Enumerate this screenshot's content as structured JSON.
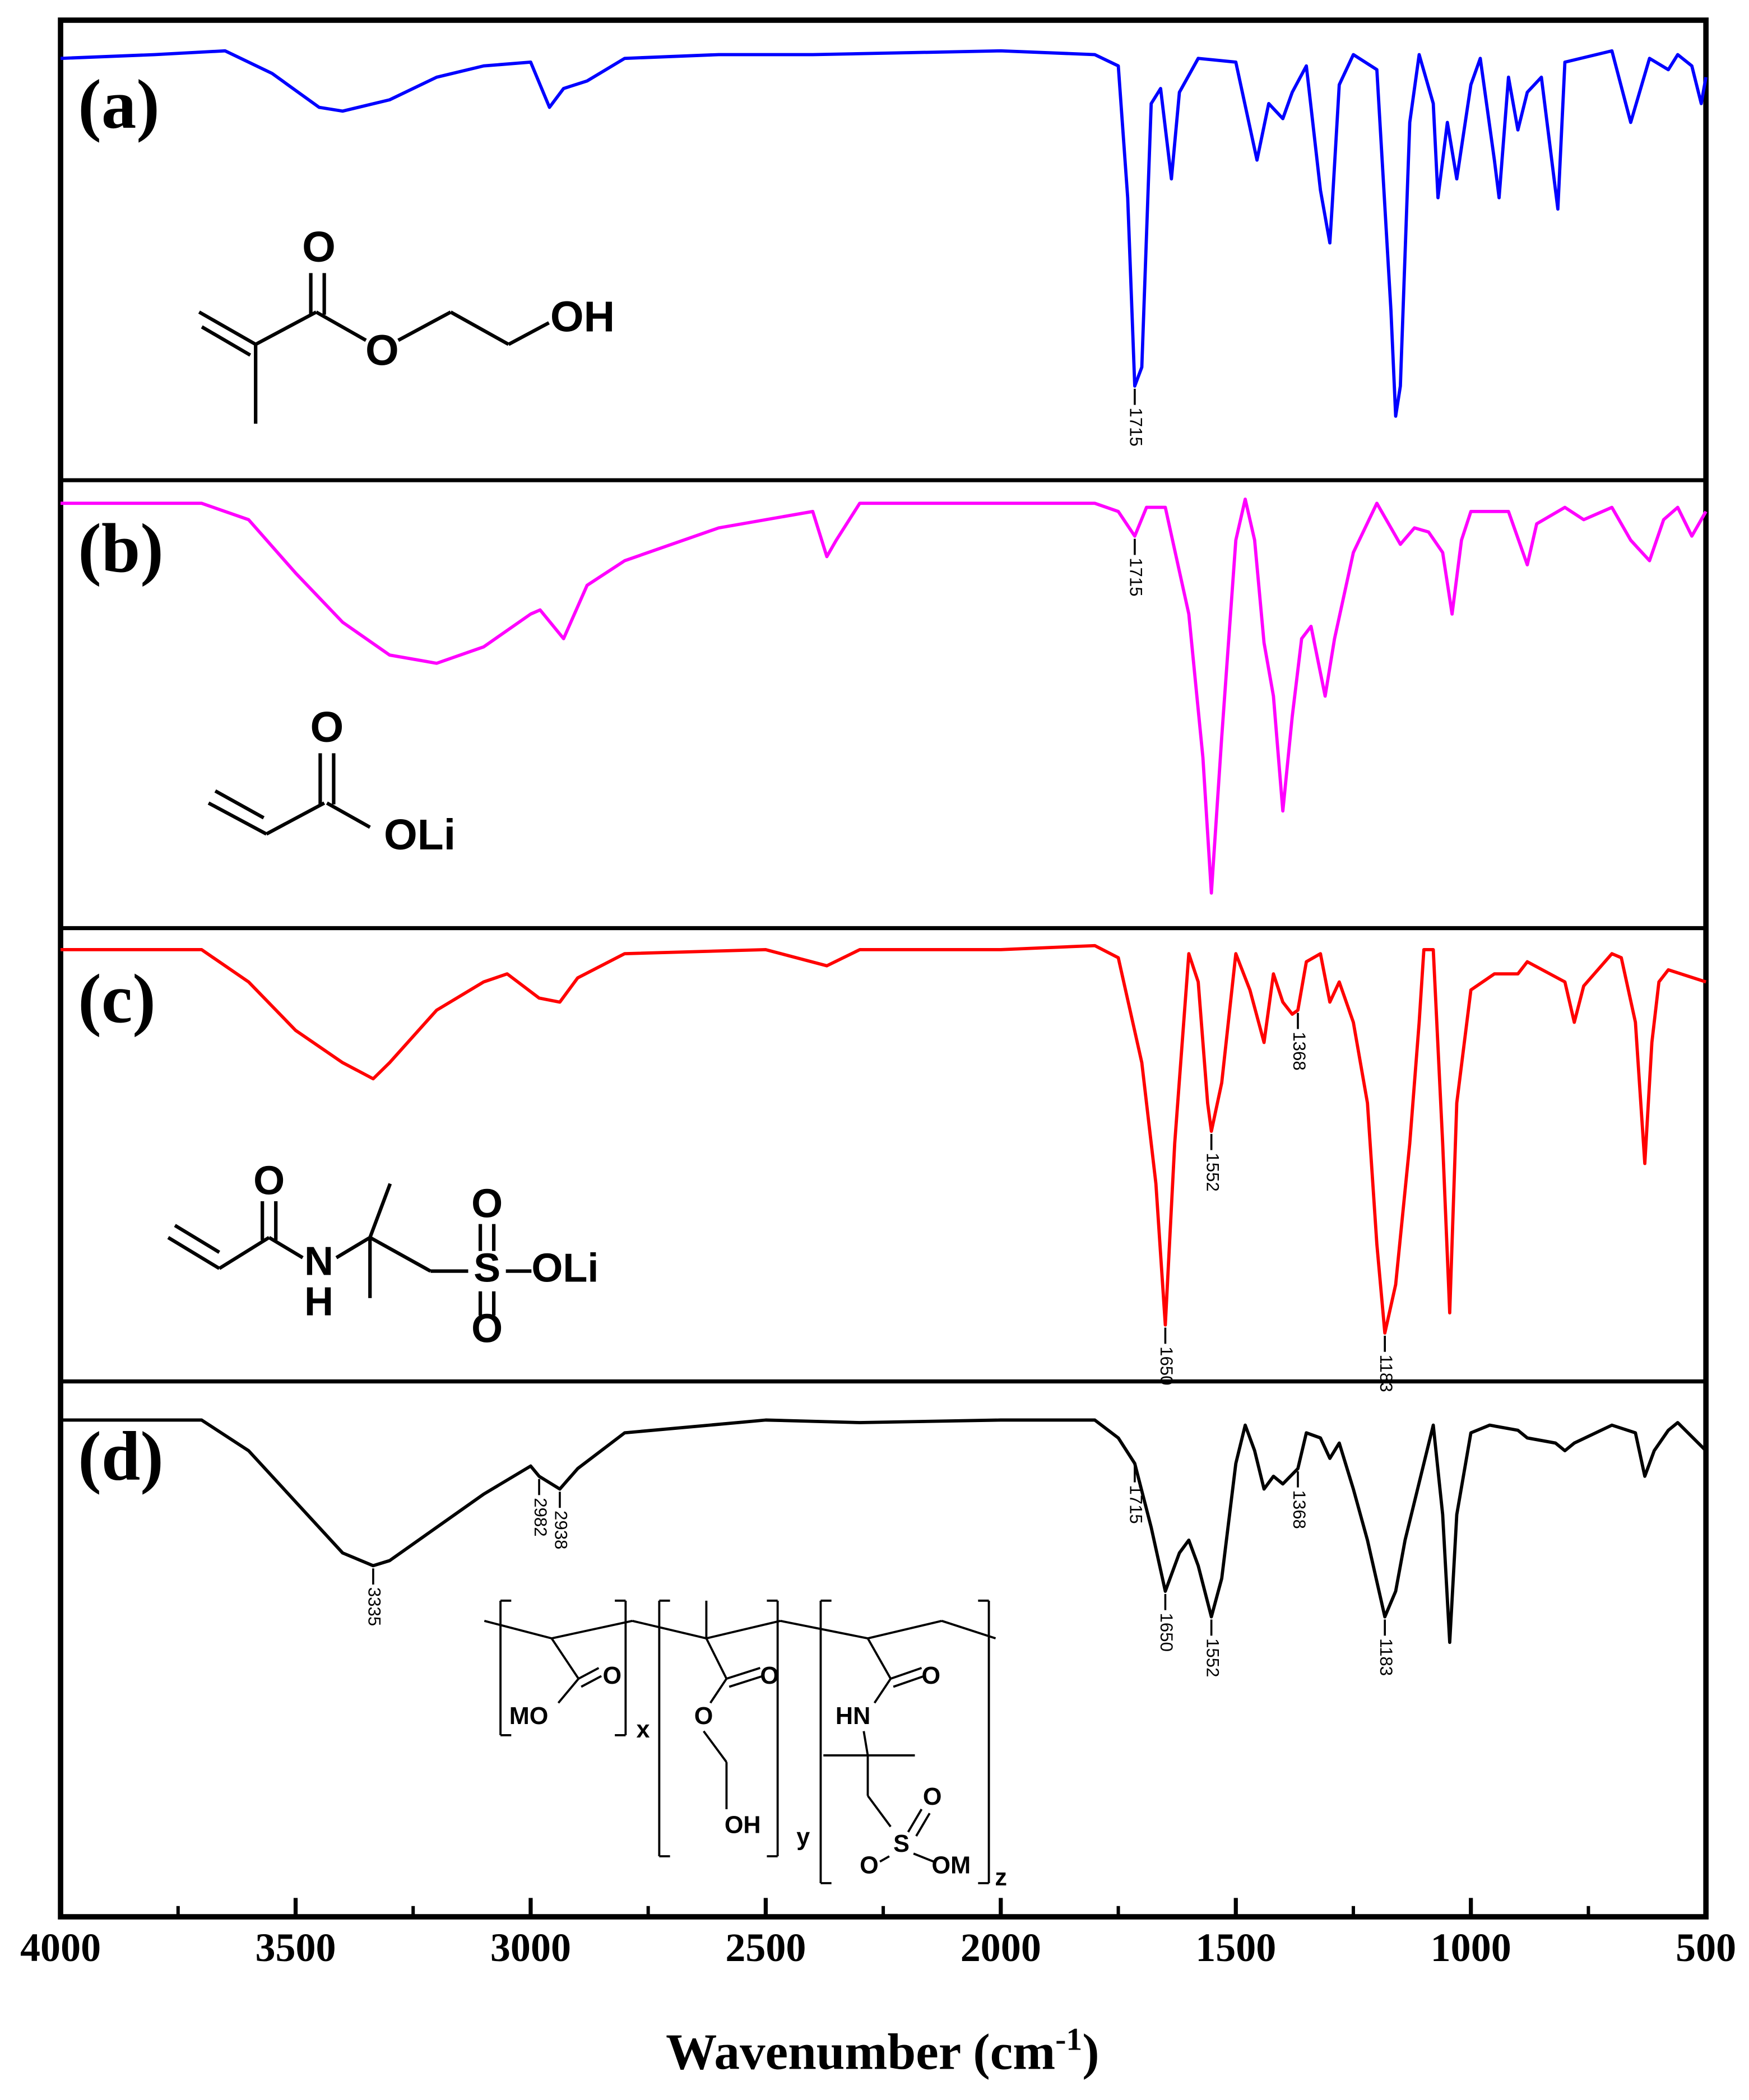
{
  "chart_data": [
    {
      "type": "line",
      "label": "(a)",
      "color": "#0000ff",
      "xlim": [
        4000,
        500
      ],
      "ylim": [
        0,
        100
      ],
      "x": [
        4000,
        3800,
        3650,
        3550,
        3450,
        3400,
        3300,
        3200,
        3100,
        3000,
        2960,
        2930,
        2880,
        2800,
        2600,
        2400,
        2000,
        1800,
        1750,
        1730,
        1715,
        1700,
        1680,
        1660,
        1637,
        1620,
        1580,
        1500,
        1455,
        1430,
        1400,
        1380,
        1350,
        1320,
        1300,
        1295,
        1280,
        1250,
        1200,
        1170,
        1160,
        1150,
        1130,
        1110,
        1080,
        1070,
        1050,
        1030,
        1000,
        980,
        950,
        940,
        920,
        900,
        880,
        850,
        815,
        800,
        700,
        660,
        620,
        580,
        560,
        530,
        510,
        500
      ],
      "values": [
        97,
        98,
        99,
        93,
        84,
        83,
        86,
        92,
        95,
        96,
        84,
        89,
        91,
        97,
        98,
        98,
        99,
        98,
        95,
        60,
        10,
        15,
        85,
        89,
        65,
        88,
        97,
        96,
        70,
        85,
        81,
        88,
        95,
        62,
        48,
        58,
        90,
        98,
        94,
        30,
        2,
        10,
        80,
        98,
        85,
        60,
        80,
        65,
        90,
        97,
        70,
        60,
        92,
        78,
        88,
        92,
        57,
        96,
        99,
        80,
        97,
        94,
        98,
        95,
        85,
        92
      ],
      "peaks": [
        1715
      ],
      "structure": [
        "O",
        "O",
        "OH"
      ]
    },
    {
      "type": "line",
      "label": "(b)",
      "color": "#ff00ff",
      "xlim": [
        4000,
        500
      ],
      "ylim": [
        0,
        100
      ],
      "x": [
        4000,
        3700,
        3600,
        3500,
        3400,
        3300,
        3200,
        3100,
        3000,
        2980,
        2930,
        2880,
        2800,
        2600,
        2400,
        2370,
        2350,
        2300,
        2000,
        1800,
        1750,
        1715,
        1690,
        1650,
        1600,
        1570,
        1552,
        1530,
        1500,
        1480,
        1460,
        1440,
        1420,
        1400,
        1380,
        1360,
        1340,
        1310,
        1290,
        1250,
        1200,
        1150,
        1120,
        1090,
        1060,
        1040,
        1020,
        1000,
        920,
        880,
        860,
        800,
        760,
        700,
        660,
        620,
        590,
        560,
        530,
        500
      ],
      "values": [
        97,
        97,
        93,
        80,
        68,
        60,
        58,
        62,
        70,
        71,
        64,
        77,
        83,
        91,
        95,
        84,
        88,
        97,
        97,
        97,
        95,
        89,
        96,
        96,
        70,
        35,
        2,
        40,
        88,
        98,
        88,
        63,
        50,
        22,
        45,
        64,
        67,
        50,
        64,
        85,
        97,
        87,
        91,
        90,
        85,
        70,
        88,
        95,
        95,
        82,
        92,
        96,
        93,
        96,
        88,
        83,
        93,
        96,
        89,
        95
      ],
      "peaks": [
        1715
      ],
      "structure": [
        "O",
        "OLi"
      ]
    },
    {
      "type": "line",
      "label": "(c)",
      "color": "#ff0000",
      "xlim": [
        4000,
        500
      ],
      "ylim": [
        0,
        100
      ],
      "x": [
        4000,
        3700,
        3600,
        3500,
        3400,
        3335,
        3300,
        3200,
        3100,
        3050,
        2982,
        2938,
        2900,
        2800,
        2500,
        2370,
        2300,
        2000,
        1800,
        1750,
        1700,
        1670,
        1650,
        1630,
        1600,
        1580,
        1560,
        1552,
        1530,
        1500,
        1470,
        1440,
        1420,
        1400,
        1380,
        1368,
        1350,
        1320,
        1300,
        1280,
        1250,
        1220,
        1200,
        1183,
        1160,
        1130,
        1110,
        1100,
        1080,
        1060,
        1045,
        1030,
        1000,
        950,
        900,
        880,
        800,
        780,
        760,
        700,
        680,
        650,
        630,
        615,
        600,
        580,
        500
      ],
      "values": [
        98,
        98,
        90,
        78,
        70,
        66,
        70,
        83,
        90,
        92,
        86,
        85,
        91,
        97,
        98,
        94,
        98,
        98,
        99,
        96,
        70,
        40,
        5,
        50,
        97,
        90,
        60,
        53,
        65,
        97,
        88,
        75,
        92,
        85,
        82,
        83,
        95,
        97,
        85,
        90,
        80,
        60,
        25,
        3,
        15,
        50,
        80,
        98,
        98,
        50,
        8,
        60,
        88,
        92,
        92,
        95,
        90,
        80,
        89,
        97,
        96,
        80,
        45,
        75,
        90,
        93,
        90
      ],
      "peaks": [
        1650,
        1552,
        1368,
        1183
      ],
      "structure": [
        "O",
        "N",
        "H",
        "S",
        "O",
        "O",
        "OLi"
      ]
    },
    {
      "type": "line",
      "label": "(d)",
      "color": "#000000",
      "xlim": [
        4000,
        500
      ],
      "ylim": [
        0,
        100
      ],
      "x": [
        4000,
        3700,
        3600,
        3500,
        3400,
        3335,
        3300,
        3200,
        3100,
        3000,
        2982,
        2938,
        2900,
        2800,
        2500,
        2300,
        2000,
        1800,
        1750,
        1715,
        1680,
        1650,
        1620,
        1600,
        1580,
        1552,
        1530,
        1500,
        1480,
        1460,
        1440,
        1420,
        1400,
        1368,
        1350,
        1320,
        1300,
        1280,
        1250,
        1220,
        1183,
        1160,
        1140,
        1100,
        1080,
        1060,
        1045,
        1030,
        1000,
        960,
        900,
        880,
        820,
        800,
        780,
        700,
        650,
        630,
        610,
        580,
        560,
        500
      ],
      "values": [
        97,
        97,
        85,
        65,
        45,
        40,
        42,
        55,
        68,
        79,
        75,
        70,
        78,
        92,
        97,
        96,
        97,
        97,
        90,
        80,
        55,
        30,
        45,
        50,
        40,
        20,
        35,
        80,
        95,
        85,
        70,
        75,
        72,
        78,
        92,
        90,
        82,
        88,
        70,
        50,
        20,
        30,
        50,
        80,
        95,
        60,
        10,
        60,
        92,
        95,
        93,
        90,
        88,
        85,
        88,
        95,
        92,
        75,
        85,
        93,
        96,
        85
      ],
      "peaks": [
        3335,
        2982,
        2938,
        1715,
        1650,
        1552,
        1368,
        1183
      ],
      "structure": [
        "MO",
        "O",
        "x",
        "O",
        "O",
        "OH",
        "y",
        "HN",
        "O",
        "S",
        "O",
        "O",
        "OM",
        "z"
      ],
      "xticks": [
        4000,
        3500,
        3000,
        2500,
        2000,
        1500,
        1000,
        500
      ],
      "xminor": [
        3750,
        3250,
        2750,
        2250,
        1750,
        1250,
        750
      ],
      "xlabel": [
        "Wavenumber (cm",
        "-1",
        ")"
      ]
    }
  ]
}
